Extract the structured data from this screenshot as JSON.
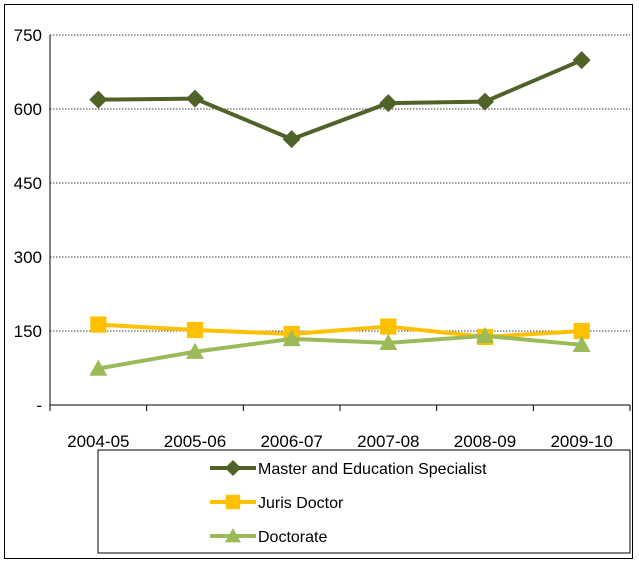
{
  "chart_data": {
    "type": "line",
    "title": "",
    "xlabel": "",
    "ylabel": "",
    "categories": [
      "2004-05",
      "2005-06",
      "2006-07",
      "2007-08",
      "2008-09",
      "2009-10"
    ],
    "ylim": [
      0,
      750
    ],
    "yticks": [
      0,
      150,
      300,
      450,
      600,
      750
    ],
    "ytick_labels": [
      "-",
      "150",
      "300",
      "450",
      "600",
      "750"
    ],
    "grid": true,
    "legend_position": "bottom",
    "series": [
      {
        "name": "Master and Education Specialist",
        "values": [
          619,
          621,
          539,
          612,
          615,
          699
        ],
        "color": "#4f6228",
        "marker": "diamond"
      },
      {
        "name": "Juris Doctor",
        "values": [
          163,
          152,
          144,
          159,
          138,
          150
        ],
        "color": "#ffc000",
        "marker": "square"
      },
      {
        "name": "Doctorate",
        "values": [
          74,
          108,
          134,
          126,
          140,
          122
        ],
        "color": "#9bbb59",
        "marker": "triangle"
      }
    ]
  }
}
